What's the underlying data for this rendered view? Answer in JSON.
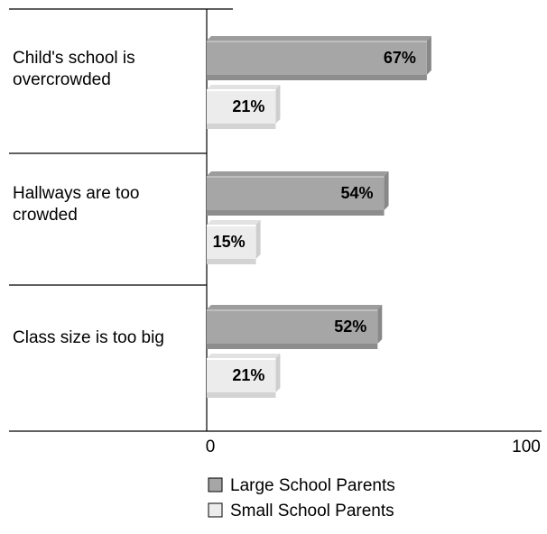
{
  "chart_data": {
    "type": "bar",
    "orientation": "horizontal",
    "categories": [
      [
        "Child's school is",
        "overcrowded"
      ],
      [
        "Hallways are too",
        "crowded"
      ],
      [
        "Class size is too big"
      ]
    ],
    "series": [
      {
        "name": "Large School Parents",
        "values": [
          67,
          54,
          52
        ],
        "labels": [
          "67%",
          "54%",
          "52%"
        ],
        "color": "#a6a6a6"
      },
      {
        "name": "Small School Parents",
        "values": [
          21,
          15,
          21
        ],
        "labels": [
          "21%",
          "15%",
          "21%"
        ],
        "color": "#ececec"
      }
    ],
    "xlim": [
      0,
      100
    ],
    "x_ticks": [
      "0",
      "100"
    ],
    "grid": false,
    "legend_position": "bottom"
  }
}
